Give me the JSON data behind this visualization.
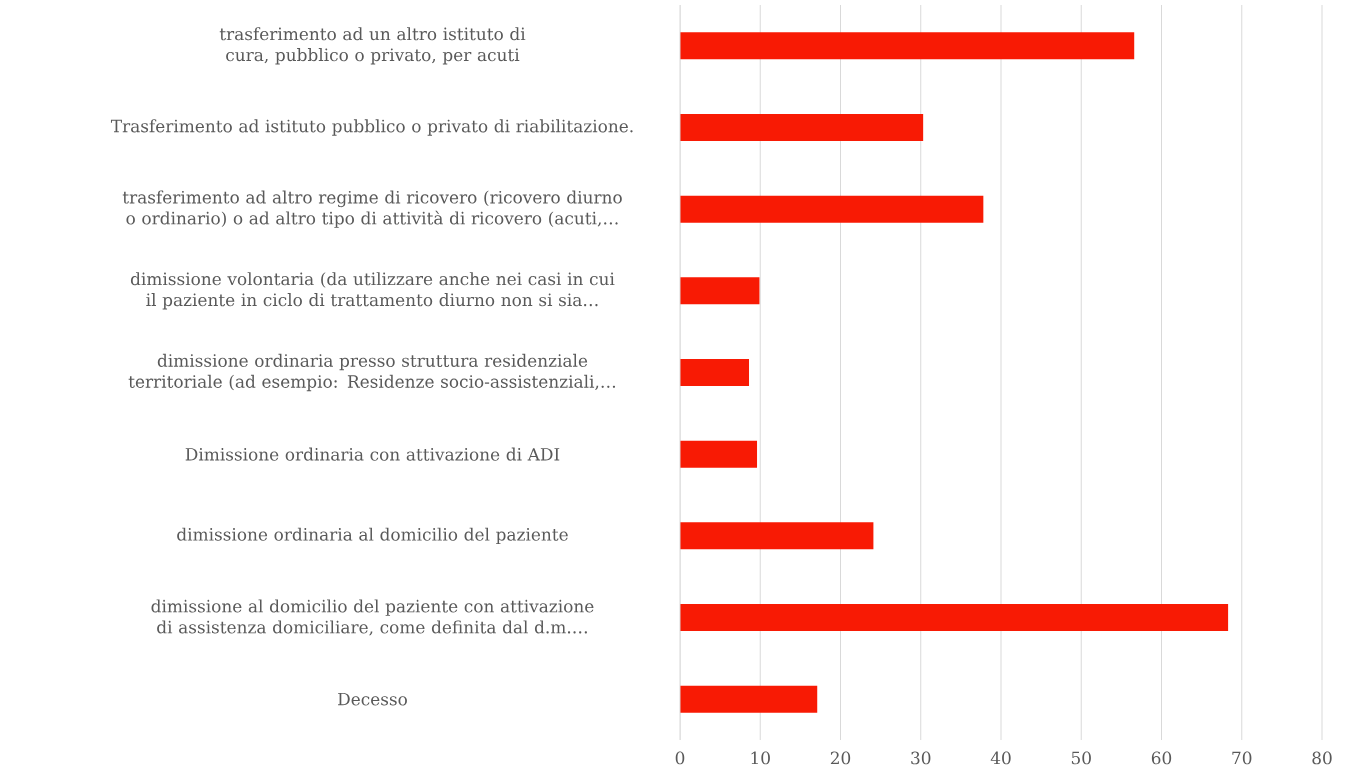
{
  "chart_data": {
    "type": "bar",
    "orientation": "horizontal",
    "categories": [
      "trasferimento ad un altro istituto di cura, pubblico o privato, per acuti",
      "Trasferimento ad istituto pubblico o privato di riabilitazione.",
      "trasferimento ad altro regime di ricovero (ricovero diurno o ordinario) o ad altro tipo di attività di ricovero (acuti,…",
      "dimissione volontaria (da utilizzare anche nei casi in cui il paziente in ciclo di trattamento diurno non si sia…",
      "dimissione ordinaria presso struttura residenziale territoriale (ad esempio: Residenze socio-assistenziali,…",
      "Dimissione ordinaria con attivazione di ADI",
      "dimissione ordinaria al domicilio del paziente",
      "dimissione al domicilio del paziente con attivazione di assistenza domiciliare, come definita dal d.m.…",
      "Decesso"
    ],
    "values": [
      56.6,
      30.3,
      37.8,
      9.9,
      8.6,
      9.6,
      24.1,
      68.3,
      17.1
    ],
    "color": "#f81a04",
    "xlim": [
      0,
      80
    ],
    "xticks": [
      0,
      10,
      20,
      30,
      40,
      50,
      60,
      70,
      80
    ],
    "grid": "x"
  }
}
